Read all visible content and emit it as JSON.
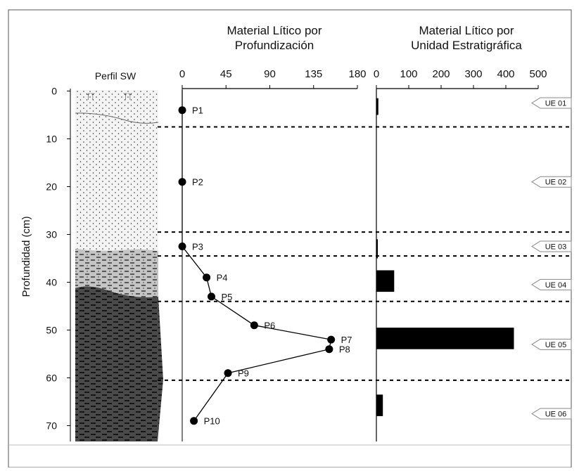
{
  "chart_data": [
    {
      "type": "line",
      "title": "Material Lítico por Profundización",
      "ylabel": "Profundidad (cm)",
      "xticks": [
        0,
        45,
        90,
        135,
        180
      ],
      "xlim": [
        0,
        180
      ],
      "yticks": [
        0,
        10,
        20,
        30,
        40,
        50,
        60,
        70
      ],
      "ylim": [
        0,
        73
      ],
      "points": [
        {
          "label": "P1",
          "x": 0,
          "y": 4
        },
        {
          "label": "P2",
          "x": 0,
          "y": 19
        },
        {
          "label": "P3",
          "x": 0,
          "y": 32.5
        },
        {
          "label": "P4",
          "x": 25,
          "y": 39
        },
        {
          "label": "P5",
          "x": 30,
          "y": 43
        },
        {
          "label": "P6",
          "x": 74,
          "y": 49
        },
        {
          "label": "P7",
          "x": 153,
          "y": 52
        },
        {
          "label": "P8",
          "x": 151,
          "y": 54
        },
        {
          "label": "P9",
          "x": 47,
          "y": 59
        },
        {
          "label": "P10",
          "x": 12,
          "y": 69
        }
      ]
    },
    {
      "type": "bar",
      "title": "Material Lítico por Unidad Estratigráfica",
      "xticks": [
        0,
        100,
        200,
        300,
        400,
        500
      ],
      "xlim": [
        0,
        500
      ],
      "categories": [
        "UE 01",
        "UE 02",
        "UE 03",
        "UE 04",
        "UE 05",
        "UE 06"
      ],
      "values": [
        6,
        0,
        4,
        55,
        425,
        20
      ],
      "bar_depths": [
        [
          1.5,
          5
        ],
        null,
        [
          31,
          35
        ],
        [
          37.5,
          42
        ],
        [
          49.5,
          54
        ],
        [
          63.5,
          68
        ]
      ],
      "unit_boundaries": [
        7.5,
        29.5,
        34.5,
        44,
        60.5
      ],
      "unit_labels_depth": [
        2.5,
        19,
        32.5,
        40.5,
        53,
        67.5
      ]
    }
  ],
  "profile": {
    "label": "Perfil SW"
  },
  "colors": {
    "ink": "#000000",
    "stratum_top": "#f4f4f4",
    "stratum_mid": "#bcbcbc",
    "stratum_dark": "#4a4a4a",
    "border": "#555555"
  }
}
